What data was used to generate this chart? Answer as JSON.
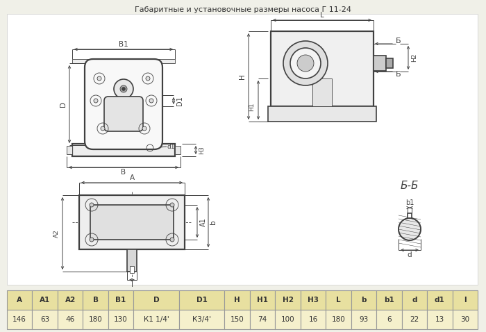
{
  "title": "Габаритные и установочные размеры насоса Г 11-24",
  "bg_color": "#f0f0e8",
  "drawing_bg": "#ffffff",
  "table_headers": [
    "A",
    "A1",
    "A2",
    "B",
    "B1",
    "D",
    "D1",
    "H",
    "H1",
    "H2",
    "H3",
    "L",
    "b",
    "b1",
    "d",
    "d1",
    "l"
  ],
  "table_values": [
    "146",
    "63",
    "46",
    "180",
    "130",
    "К1 1/4'",
    "К3/4'",
    "150",
    "74",
    "100",
    "16",
    "180",
    "93",
    "6",
    "22",
    "13",
    "30"
  ],
  "table_header_bg": "#e8e0a0",
  "table_value_bg": "#f5f0cc",
  "table_border": "#999999",
  "line_color": "#404040",
  "dim_color": "#404040",
  "thin_color": "#606060"
}
